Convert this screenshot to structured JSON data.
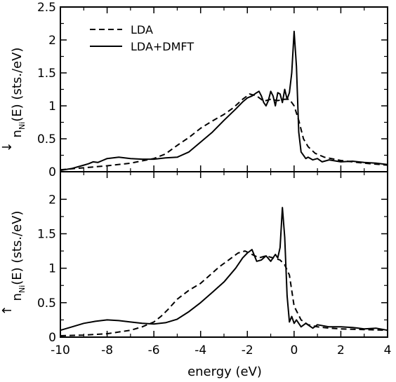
{
  "chart_data": [
    {
      "type": "line",
      "panel": "top",
      "ylabel_main": "n",
      "ylabel_sup": "↓",
      "ylabel_sub": "Ni",
      "ylabel_rest": "(E) (sts./eV)",
      "xlim": [
        -10,
        4
      ],
      "ylim": [
        0,
        2.5
      ],
      "y_ticks": [
        0,
        0.5,
        1,
        1.5,
        2,
        2.5
      ],
      "y_tick_labels": [
        "0",
        "0.5",
        "1",
        "1.5",
        "2",
        "2.5"
      ],
      "legend": {
        "placement": "top-left",
        "entries": [
          "LDA",
          "LDA+DMFT"
        ]
      },
      "series": [
        {
          "name": "LDA",
          "style": "dashed",
          "x": [
            -10,
            -9,
            -8,
            -7,
            -6,
            -5.5,
            -5,
            -4.5,
            -4,
            -3.5,
            -3,
            -2.6,
            -2.2,
            -1.9,
            -1.6,
            -1.3,
            -1.0,
            -0.7,
            -0.4,
            -0.2,
            0,
            0.2,
            0.4,
            0.6,
            0.9,
            1.3,
            2,
            3,
            4
          ],
          "y": [
            0.03,
            0.06,
            0.09,
            0.13,
            0.2,
            0.27,
            0.4,
            0.52,
            0.66,
            0.77,
            0.87,
            0.97,
            1.1,
            1.18,
            1.15,
            1.07,
            1.1,
            1.08,
            1.1,
            1.1,
            1.0,
            0.78,
            0.5,
            0.38,
            0.28,
            0.22,
            0.17,
            0.13,
            0.1
          ]
        },
        {
          "name": "LDA+DMFT",
          "style": "solid",
          "x": [
            -10,
            -9.5,
            -9,
            -8.8,
            -8.6,
            -8.4,
            -8.2,
            -8,
            -7.5,
            -7,
            -6.5,
            -6,
            -5.5,
            -5,
            -4.5,
            -4,
            -3.5,
            -3,
            -2.5,
            -2.2,
            -2.0,
            -1.8,
            -1.6,
            -1.5,
            -1.4,
            -1.3,
            -1.2,
            -1.1,
            -1.0,
            -0.9,
            -0.8,
            -0.7,
            -0.6,
            -0.5,
            -0.4,
            -0.3,
            -0.2,
            -0.1,
            0,
            0.1,
            0.2,
            0.3,
            0.4,
            0.5,
            0.6,
            0.8,
            1.0,
            1.2,
            1.5,
            2,
            2.5,
            3,
            3.5,
            4
          ],
          "y": [
            0.02,
            0.05,
            0.1,
            0.12,
            0.15,
            0.14,
            0.17,
            0.2,
            0.22,
            0.2,
            0.19,
            0.19,
            0.21,
            0.22,
            0.3,
            0.45,
            0.6,
            0.78,
            0.95,
            1.06,
            1.12,
            1.15,
            1.2,
            1.22,
            1.15,
            1.05,
            1.0,
            1.08,
            1.22,
            1.15,
            1.0,
            1.2,
            1.18,
            1.05,
            1.25,
            1.1,
            1.2,
            1.5,
            2.13,
            1.6,
            0.6,
            0.3,
            0.25,
            0.2,
            0.22,
            0.18,
            0.2,
            0.15,
            0.18,
            0.15,
            0.16,
            0.14,
            0.13,
            0.11
          ]
        }
      ]
    },
    {
      "type": "line",
      "panel": "bottom",
      "xlabel": "energy (eV)",
      "ylabel_main": "n",
      "ylabel_sup": "↑",
      "ylabel_sub": "Ni",
      "ylabel_rest": "(E) (sts./eV)",
      "xlim": [
        -10,
        4
      ],
      "ylim": [
        0,
        2.4
      ],
      "x_ticks": [
        -10,
        -8,
        -6,
        -4,
        -2,
        0,
        2,
        4
      ],
      "x_tick_labels": [
        "-10",
        "-8",
        "-6",
        "-4",
        "-2",
        "0",
        "2",
        "4"
      ],
      "y_ticks": [
        0,
        0.5,
        1,
        1.5,
        2
      ],
      "y_tick_labels": [
        "0",
        "0.5",
        "1",
        "1.5",
        "2"
      ],
      "series": [
        {
          "name": "LDA",
          "style": "dashed",
          "x": [
            -10,
            -9,
            -8,
            -7,
            -6.5,
            -6,
            -5.7,
            -5.4,
            -5,
            -4.5,
            -4,
            -3.6,
            -3.2,
            -2.8,
            -2.4,
            -2.1,
            -1.8,
            -1.5,
            -1.2,
            -0.9,
            -0.6,
            -0.4,
            -0.2,
            0,
            0.3,
            0.6,
            1.0,
            1.5,
            2,
            3,
            4
          ],
          "y": [
            0.02,
            0.03,
            0.05,
            0.1,
            0.15,
            0.22,
            0.3,
            0.4,
            0.55,
            0.68,
            0.78,
            0.9,
            1.02,
            1.12,
            1.22,
            1.25,
            1.2,
            1.15,
            1.18,
            1.15,
            1.12,
            1.05,
            0.9,
            0.45,
            0.25,
            0.18,
            0.15,
            0.13,
            0.12,
            0.11,
            0.1
          ]
        },
        {
          "name": "LDA+DMFT",
          "style": "solid",
          "x": [
            -10,
            -9.5,
            -9,
            -8.5,
            -8,
            -7.5,
            -7,
            -6.5,
            -6,
            -5.5,
            -5,
            -4.5,
            -4,
            -3.5,
            -3,
            -2.5,
            -2.2,
            -2.0,
            -1.8,
            -1.6,
            -1.4,
            -1.2,
            -1.0,
            -0.8,
            -0.7,
            -0.6,
            -0.5,
            -0.4,
            -0.3,
            -0.2,
            -0.1,
            0,
            0.1,
            0.3,
            0.5,
            0.8,
            1.0,
            1.5,
            2,
            2.5,
            3,
            3.5,
            4
          ],
          "y": [
            0.1,
            0.15,
            0.2,
            0.23,
            0.25,
            0.24,
            0.22,
            0.2,
            0.19,
            0.21,
            0.26,
            0.37,
            0.5,
            0.65,
            0.8,
            1.0,
            1.15,
            1.22,
            1.27,
            1.1,
            1.12,
            1.18,
            1.1,
            1.2,
            1.15,
            1.3,
            1.88,
            1.45,
            0.6,
            0.22,
            0.3,
            0.2,
            0.25,
            0.15,
            0.2,
            0.13,
            0.18,
            0.15,
            0.15,
            0.14,
            0.12,
            0.13,
            0.1
          ]
        }
      ]
    }
  ]
}
